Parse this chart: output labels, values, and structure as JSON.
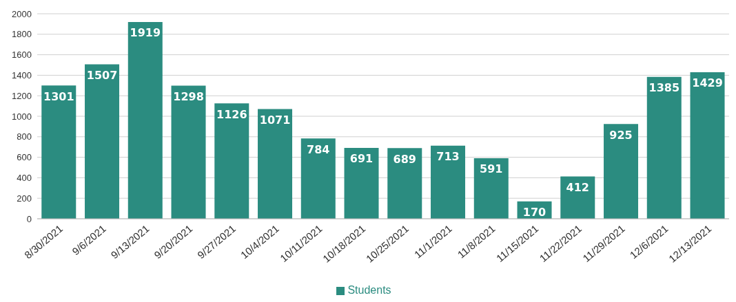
{
  "chart_data": {
    "type": "bar",
    "categories": [
      "8/30/2021",
      "9/6/2021",
      "9/13/2021",
      "9/20/2021",
      "9/27/2021",
      "10/4/2021",
      "10/11/2021",
      "10/18/2021",
      "10/25/2021",
      "11/1/2021",
      "11/8/2021",
      "11/15/2021",
      "11/22/2021",
      "11/29/2021",
      "12/6/2021",
      "12/13/2021"
    ],
    "series": [
      {
        "name": "Students",
        "color": "#2b8c80",
        "values": [
          1301,
          1507,
          1919,
          1298,
          1126,
          1071,
          784,
          691,
          689,
          713,
          591,
          170,
          412,
          925,
          1385,
          1429
        ]
      }
    ],
    "ylim": [
      0,
      2000
    ],
    "yticks": [
      0,
      200,
      400,
      600,
      800,
      1000,
      1200,
      1400,
      1600,
      1800,
      2000
    ],
    "grid": "y",
    "legend": "bottom",
    "data_labels": true
  }
}
